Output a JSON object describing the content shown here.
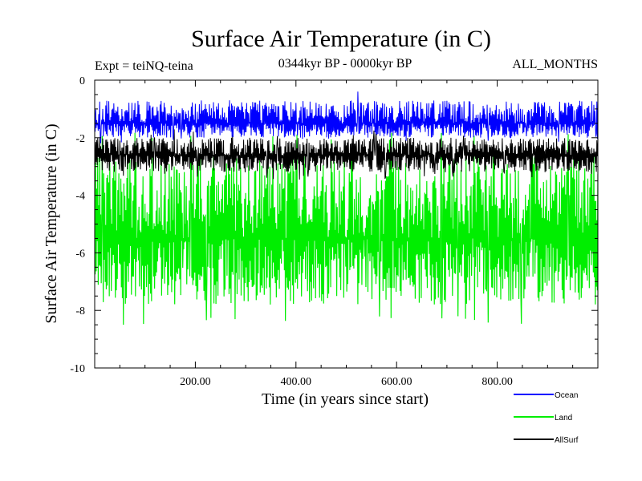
{
  "chart_data": {
    "type": "line",
    "title": "Surface Air Temperature (in C)",
    "subtitle_left": "Expt = teiNQ-teina",
    "subtitle_center": "0344kyr BP - 0000kyr BP",
    "subtitle_right": "ALL_MONTHS",
    "xlabel": "Time (in years since start)",
    "ylabel": "Surface Air Temperature (in C)",
    "xlim": [
      0,
      1000
    ],
    "ylim": [
      -10,
      0
    ],
    "x_ticks": [
      {
        "value": 200,
        "label": "200.00"
      },
      {
        "value": 400,
        "label": "400.00"
      },
      {
        "value": 600,
        "label": "600.00"
      },
      {
        "value": 800,
        "label": "800.00"
      }
    ],
    "y_ticks": [
      {
        "value": 0,
        "label": "0"
      },
      {
        "value": -2,
        "label": "-2"
      },
      {
        "value": -4,
        "label": "-4"
      },
      {
        "value": -6,
        "label": "-6"
      },
      {
        "value": -8,
        "label": "-8"
      },
      {
        "value": -10,
        "label": "-10"
      }
    ],
    "n_points": 1000,
    "series": [
      {
        "name": "Land",
        "color": "#00ee00",
        "mean": -5.5,
        "low_extreme": -8.5,
        "high_extreme": -1.8,
        "typical_low": -7.8,
        "typical_high": -2.6
      },
      {
        "name": "AllSurf",
        "color": "#000000",
        "mean": -2.6,
        "low_extreme": -3.5,
        "high_extreme": -1.7,
        "typical_low": -3.2,
        "typical_high": -2.0
      },
      {
        "name": "Ocean",
        "color": "#0000ff",
        "mean": -1.5,
        "low_extreme": -2.2,
        "high_extreme": -0.3,
        "typical_low": -2.0,
        "typical_high": -0.7
      }
    ],
    "legend": [
      {
        "name": "Ocean",
        "color": "#0000ff"
      },
      {
        "name": "Land",
        "color": "#00ee00"
      },
      {
        "name": "AllSurf",
        "color": "#000000"
      }
    ]
  }
}
